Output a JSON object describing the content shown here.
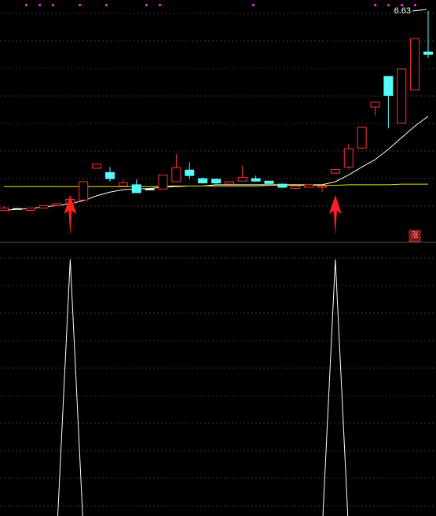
{
  "chart_data": [
    {
      "type": "candlestick",
      "open": [
        3.37,
        3.4,
        3.37,
        3.41,
        3.45,
        3.48,
        3.54,
        4.06,
        3.99,
        3.77,
        3.79,
        3.72,
        3.72,
        3.84,
        4.03,
        3.89,
        3.88,
        3.8,
        3.85,
        3.89,
        3.85,
        3.8,
        3.73,
        3.75,
        3.75,
        3.98,
        4.08,
        4.39,
        5.06,
        5.56,
        4.8,
        5.34,
        5.96
      ],
      "high": [
        3.44,
        3.41,
        3.41,
        3.45,
        3.49,
        3.61,
        3.84,
        4.13,
        4.08,
        3.88,
        3.88,
        3.73,
        3.95,
        4.29,
        4.16,
        3.91,
        3.89,
        3.85,
        4.1,
        3.94,
        3.85,
        3.81,
        3.77,
        3.79,
        3.78,
        4.04,
        4.45,
        4.73,
        5.14,
        5.56,
        5.68,
        6.18,
        6.63
      ],
      "low": [
        3.36,
        3.39,
        3.37,
        3.41,
        3.44,
        3.48,
        3.54,
        4.06,
        3.84,
        3.77,
        3.66,
        3.71,
        3.72,
        3.84,
        3.88,
        3.81,
        3.8,
        3.8,
        3.85,
        3.84,
        3.81,
        3.74,
        3.73,
        3.75,
        3.67,
        3.98,
        4.05,
        4.39,
        4.92,
        4.71,
        4.8,
        5.34,
        5.86
      ],
      "close": [
        3.41,
        3.4,
        3.41,
        3.45,
        3.48,
        3.55,
        3.84,
        4.13,
        3.89,
        3.82,
        3.66,
        3.72,
        3.95,
        4.07,
        3.94,
        3.82,
        3.82,
        3.84,
        3.91,
        3.85,
        3.81,
        3.75,
        3.77,
        3.79,
        3.77,
        4.04,
        4.38,
        4.73,
        5.14,
        5.25,
        5.68,
        6.18,
        5.92
      ],
      "up_color": "#ff3232",
      "down_color": "#54fcfc",
      "flat_color": "#ffffff",
      "series": [
        {
          "color": "#ffffff",
          "values": [
            3.37,
            3.39,
            3.4,
            3.43,
            3.45,
            3.48,
            3.53,
            3.61,
            3.67,
            3.71,
            3.72,
            3.73,
            3.75,
            3.76,
            3.77,
            3.77,
            3.79,
            3.79,
            3.79,
            3.79,
            3.79,
            3.79,
            3.79,
            3.79,
            3.79,
            3.84,
            3.95,
            4.08,
            4.2,
            4.37,
            4.56,
            4.75,
            4.91
          ]
        },
        {
          "color": "#e8e800",
          "values": [
            3.76,
            3.76,
            3.76,
            3.76,
            3.76,
            3.76,
            3.76,
            3.76,
            3.76,
            3.76,
            3.76,
            3.76,
            3.77,
            3.77,
            3.77,
            3.77,
            3.77,
            3.77,
            3.77,
            3.77,
            3.78,
            3.78,
            3.78,
            3.78,
            3.78,
            3.78,
            3.79,
            3.79,
            3.79,
            3.79,
            3.8,
            3.8,
            3.8
          ]
        }
      ],
      "ylim": [
        2.85,
        6.81
      ],
      "badge": "涨"
    },
    {
      "type": "line",
      "series": [
        {
          "color": "#ffffff",
          "values": [
            0,
            0,
            0,
            0,
            0,
            1,
            0,
            0,
            0,
            0,
            0,
            0,
            0,
            0,
            0,
            0,
            0,
            0,
            0,
            0,
            0,
            0,
            0,
            0,
            0,
            1,
            0,
            0,
            0,
            0,
            0,
            0,
            0
          ]
        }
      ],
      "ylim": [
        0.06,
        1.06
      ]
    }
  ]
}
